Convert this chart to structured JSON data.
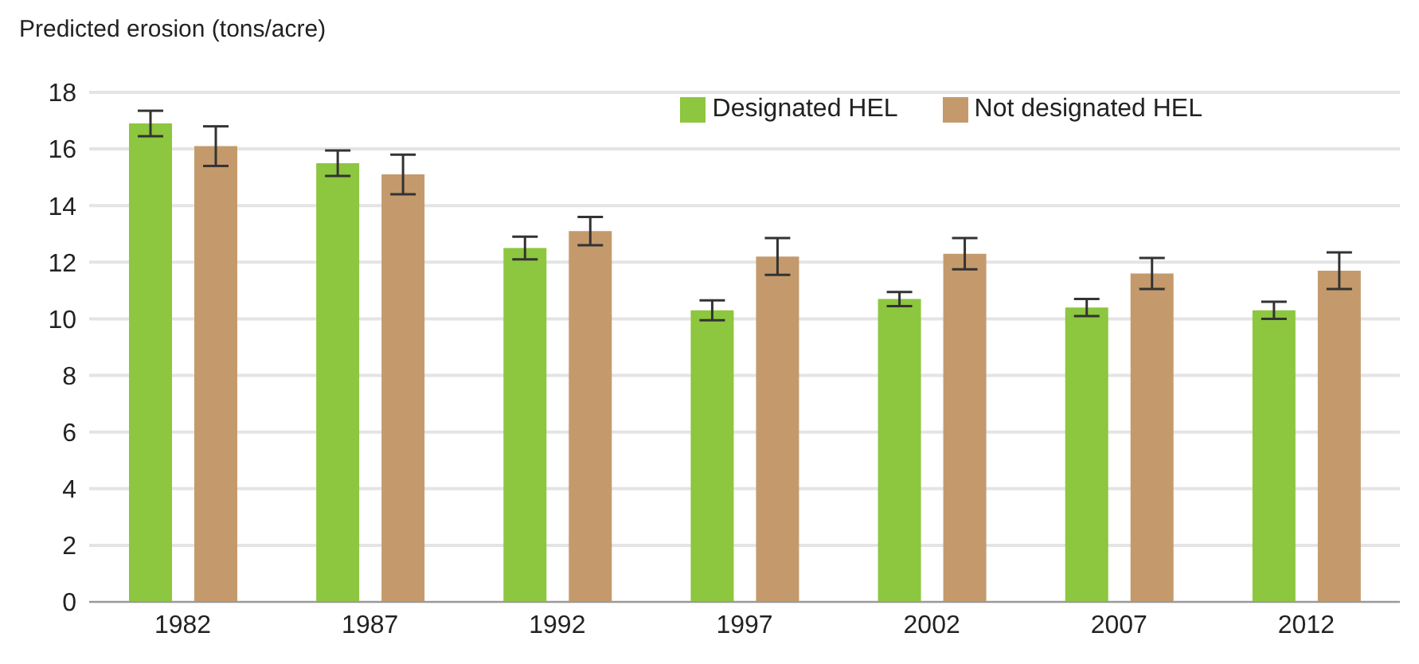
{
  "chart_data": {
    "type": "bar",
    "ylabel": "Predicted erosion (tons/acre)",
    "categories": [
      "1982",
      "1987",
      "1992",
      "1997",
      "2002",
      "2007",
      "2012"
    ],
    "series": [
      {
        "name": "Designated HEL",
        "color": "#8dc63f",
        "values": [
          16.9,
          15.5,
          12.5,
          10.3,
          10.7,
          10.4,
          10.3
        ],
        "errors": [
          0.45,
          0.45,
          0.4,
          0.35,
          0.25,
          0.3,
          0.3
        ]
      },
      {
        "name": "Not designated HEL",
        "color": "#c49a6c",
        "values": [
          16.1,
          15.1,
          13.1,
          12.2,
          12.3,
          11.6,
          11.7
        ],
        "errors": [
          0.7,
          0.7,
          0.5,
          0.65,
          0.55,
          0.55,
          0.65
        ]
      }
    ],
    "ylim": [
      0,
      18
    ],
    "yticks": [
      0,
      2,
      4,
      6,
      8,
      10,
      12,
      14,
      16,
      18
    ],
    "grid": "y",
    "legend": "top right"
  }
}
